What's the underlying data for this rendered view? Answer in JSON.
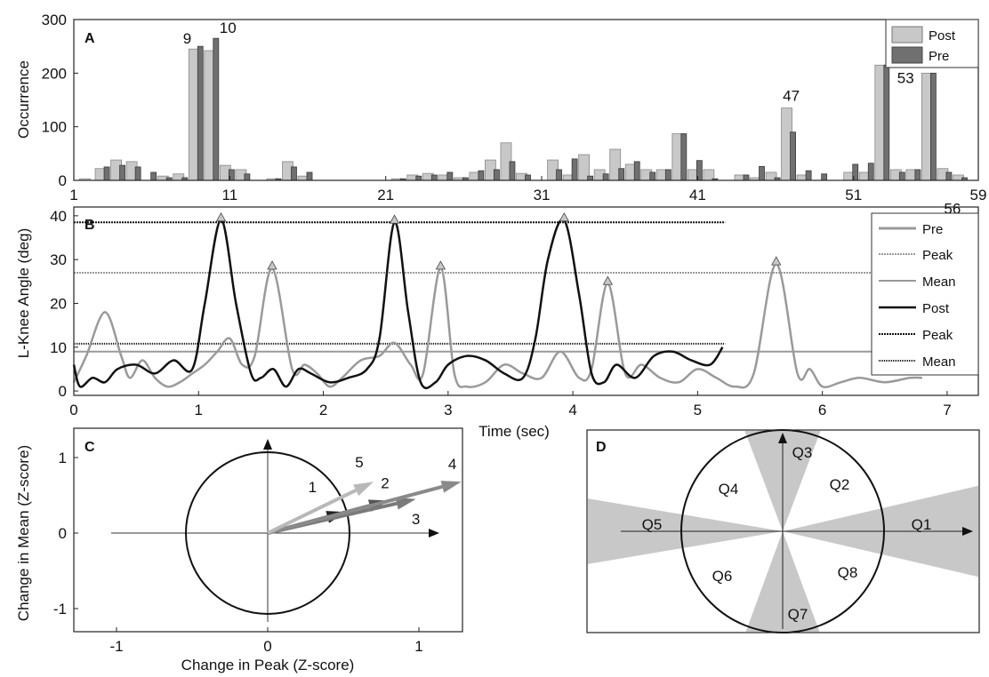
{
  "chart_data": [
    {
      "panel": "A",
      "type": "bar",
      "ylabel": "Occurrence",
      "xlim": [
        1,
        59
      ],
      "ylim": [
        0,
        300
      ],
      "xticks": [
        "1",
        "11",
        "21",
        "31",
        "41",
        "51",
        "59"
      ],
      "yticks": [
        "0",
        "100",
        "200",
        "300"
      ],
      "legend": {
        "placement": "top-right",
        "entries": [
          "Post",
          "Pre"
        ]
      },
      "colors": {
        "Post": "#c8c8c8",
        "Pre": "#707070"
      },
      "annotations": [
        {
          "text": "9",
          "x": 9,
          "y": 245
        },
        {
          "text": "10",
          "x": 10,
          "y": 265
        },
        {
          "text": "47",
          "x": 47,
          "y": 135
        },
        {
          "text": "53",
          "x": 53,
          "y": 215
        },
        {
          "text": "56",
          "x": 56,
          "y": 200
        }
      ],
      "series": [
        {
          "name": "Post",
          "x": [
            2,
            3,
            4,
            5,
            7,
            8,
            9,
            10,
            11,
            12,
            14,
            15,
            16,
            22,
            23,
            24,
            25,
            26,
            27,
            28,
            29,
            30,
            32,
            33,
            34,
            35,
            36,
            37,
            38,
            39,
            40,
            41,
            42,
            44,
            45,
            46,
            47,
            48,
            51,
            52,
            53,
            54,
            55,
            56,
            57,
            58
          ],
          "values": [
            3,
            22,
            38,
            35,
            8,
            12,
            245,
            242,
            28,
            20,
            3,
            35,
            8,
            3,
            10,
            13,
            10,
            5,
            15,
            38,
            70,
            13,
            38,
            10,
            48,
            20,
            58,
            30,
            20,
            20,
            87,
            20,
            20,
            10,
            5,
            15,
            135,
            10,
            15,
            15,
            215,
            20,
            20,
            200,
            22,
            10
          ]
        },
        {
          "name": "Pre",
          "x": [
            3,
            4,
            5,
            6,
            7,
            8,
            9,
            10,
            11,
            12,
            14,
            15,
            16,
            22,
            23,
            24,
            25,
            26,
            27,
            28,
            29,
            30,
            32,
            33,
            34,
            35,
            36,
            37,
            38,
            39,
            40,
            41,
            42,
            44,
            45,
            46,
            47,
            48,
            49,
            51,
            52,
            53,
            54,
            55,
            56,
            57,
            58
          ],
          "values": [
            25,
            28,
            25,
            15,
            5,
            5,
            250,
            265,
            20,
            12,
            3,
            25,
            15,
            3,
            8,
            10,
            15,
            5,
            18,
            20,
            35,
            10,
            20,
            40,
            8,
            12,
            22,
            35,
            15,
            20,
            87,
            37,
            3,
            10,
            26,
            5,
            90,
            18,
            12,
            30,
            32,
            215,
            15,
            20,
            200,
            15,
            5
          ]
        }
      ]
    },
    {
      "panel": "B",
      "type": "line",
      "xlabel": "Time (sec)",
      "ylabel": "L-Knee Angle (deg)",
      "xlim": [
        0,
        7.25
      ],
      "ylim": [
        -1,
        42
      ],
      "xticks": [
        "0",
        "1",
        "2",
        "3",
        "4",
        "5",
        "6",
        "7"
      ],
      "yticks": [
        "0",
        "10",
        "20",
        "30",
        "40"
      ],
      "legend": {
        "placement": "top-right",
        "entries": [
          "Pre",
          "Peak",
          "Mean",
          "Post",
          "Peak",
          "Mean"
        ]
      },
      "colors": {
        "pre": "#9a9a9a",
        "post": "#111111"
      },
      "pre_peak": 27,
      "pre_mean": 9,
      "post_peak": 38.5,
      "post_mean": 10.8,
      "pre_peaks": [
        [
          1.59,
          28
        ],
        [
          2.94,
          28
        ],
        [
          4.28,
          24.5
        ],
        [
          5.63,
          29
        ]
      ],
      "post_peaks": [
        [
          1.18,
          39
        ],
        [
          2.57,
          38.5
        ],
        [
          3.93,
          39
        ]
      ],
      "series": [
        {
          "name": "Pre",
          "x": [
            0,
            0.1,
            0.25,
            0.38,
            0.45,
            0.55,
            0.65,
            0.75,
            0.85,
            0.95,
            1.05,
            1.15,
            1.25,
            1.35,
            1.45,
            1.59,
            1.75,
            1.85,
            1.95,
            2.05,
            2.15,
            2.3,
            2.45,
            2.57,
            2.7,
            2.8,
            2.94,
            3.05,
            3.15,
            3.3,
            3.45,
            3.6,
            3.75,
            3.9,
            4.05,
            4.15,
            4.28,
            4.42,
            4.55,
            4.7,
            4.85,
            5.0,
            5.15,
            5.3,
            5.45,
            5.63,
            5.8,
            5.9,
            6.0,
            6.15,
            6.3,
            6.5,
            6.7,
            6.8
          ],
          "values": [
            2,
            8,
            18,
            8,
            3,
            7,
            3,
            1,
            2,
            4,
            6,
            9,
            12,
            6,
            8,
            28,
            5,
            6,
            4,
            1,
            3,
            7,
            8,
            11,
            6,
            4,
            28,
            4,
            1,
            2,
            6,
            4,
            3,
            9,
            3,
            5,
            24.5,
            4,
            6,
            3,
            2,
            5,
            3,
            1,
            4,
            29,
            4,
            5,
            1,
            2,
            3,
            2,
            3,
            3
          ]
        },
        {
          "name": "Post",
          "x": [
            0,
            0.05,
            0.15,
            0.25,
            0.35,
            0.5,
            0.65,
            0.8,
            0.95,
            1.05,
            1.18,
            1.3,
            1.42,
            1.5,
            1.6,
            1.7,
            1.8,
            1.9,
            2.05,
            2.2,
            2.35,
            2.45,
            2.57,
            2.68,
            2.78,
            2.9,
            3.0,
            3.15,
            3.3,
            3.45,
            3.6,
            3.7,
            3.8,
            3.93,
            4.05,
            4.15,
            4.25,
            4.35,
            4.5,
            4.65,
            4.8,
            4.95,
            5.1,
            5.2
          ],
          "values": [
            6,
            1,
            3,
            2,
            5,
            6,
            4,
            7,
            5,
            20,
            39,
            20,
            4,
            3,
            5,
            1,
            5,
            4,
            2,
            3,
            5,
            12,
            38.5,
            18,
            2,
            2,
            6,
            8,
            7,
            4,
            3,
            12,
            30,
            39,
            22,
            4,
            2,
            6,
            3,
            8,
            9,
            7,
            6,
            10
          ]
        }
      ]
    },
    {
      "panel": "C",
      "type": "vector",
      "xlabel": "Change in Peak (Z-score)",
      "ylabel": "Change in Mean (Z-score)",
      "xlim": [
        -1.3,
        1.3
      ],
      "ylim": [
        -1.3,
        1.3
      ],
      "xticks": [
        "-1",
        "0",
        "1"
      ],
      "yticks": [
        "-1",
        "0",
        "1"
      ],
      "vectors": [
        {
          "label": "1",
          "dx": 0.52,
          "dy": 0.28,
          "color": "#222222"
        },
        {
          "label": "2",
          "dx": 0.8,
          "dy": 0.43,
          "color": "#555555"
        },
        {
          "label": "3",
          "dx": 0.98,
          "dy": 0.45,
          "color": "#7a7a7a"
        },
        {
          "label": "4",
          "dx": 1.28,
          "dy": 0.68,
          "color": "#8a8a8a"
        },
        {
          "label": "5",
          "dx": 0.7,
          "dy": 0.68,
          "color": "#b8b8b8"
        }
      ]
    },
    {
      "panel": "D",
      "type": "diagram",
      "quadrants": [
        "Q1",
        "Q2",
        "Q3",
        "Q4",
        "Q5",
        "Q6",
        "Q7",
        "Q8"
      ],
      "shade_color": "#c8c8c8"
    }
  ]
}
